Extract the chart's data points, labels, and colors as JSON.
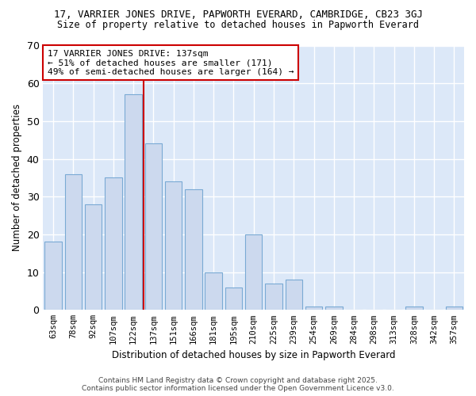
{
  "title1": "17, VARRIER JONES DRIVE, PAPWORTH EVERARD, CAMBRIDGE, CB23 3GJ",
  "title2": "Size of property relative to detached houses in Papworth Everard",
  "xlabel": "Distribution of detached houses by size in Papworth Everard",
  "ylabel": "Number of detached properties",
  "categories": [
    "63sqm",
    "78sqm",
    "92sqm",
    "107sqm",
    "122sqm",
    "137sqm",
    "151sqm",
    "166sqm",
    "181sqm",
    "195sqm",
    "210sqm",
    "225sqm",
    "239sqm",
    "254sqm",
    "269sqm",
    "284sqm",
    "298sqm",
    "313sqm",
    "328sqm",
    "342sqm",
    "357sqm"
  ],
  "values": [
    18,
    36,
    28,
    35,
    57,
    44,
    34,
    32,
    10,
    6,
    20,
    7,
    8,
    1,
    1,
    0,
    0,
    0,
    1,
    0,
    1
  ],
  "bar_color": "#ccd9ee",
  "bar_edge_color": "#7aaad4",
  "red_line_after_index": 4,
  "annotation_title": "17 VARRIER JONES DRIVE: 137sqm",
  "annotation_line1": "← 51% of detached houses are smaller (171)",
  "annotation_line2": "49% of semi-detached houses are larger (164) →",
  "ylim": [
    0,
    70
  ],
  "yticks": [
    0,
    10,
    20,
    30,
    40,
    50,
    60,
    70
  ],
  "fig_background": "#ffffff",
  "plot_background": "#dce8f8",
  "grid_color": "#ffffff",
  "footer1": "Contains HM Land Registry data © Crown copyright and database right 2025.",
  "footer2": "Contains public sector information licensed under the Open Government Licence v3.0."
}
